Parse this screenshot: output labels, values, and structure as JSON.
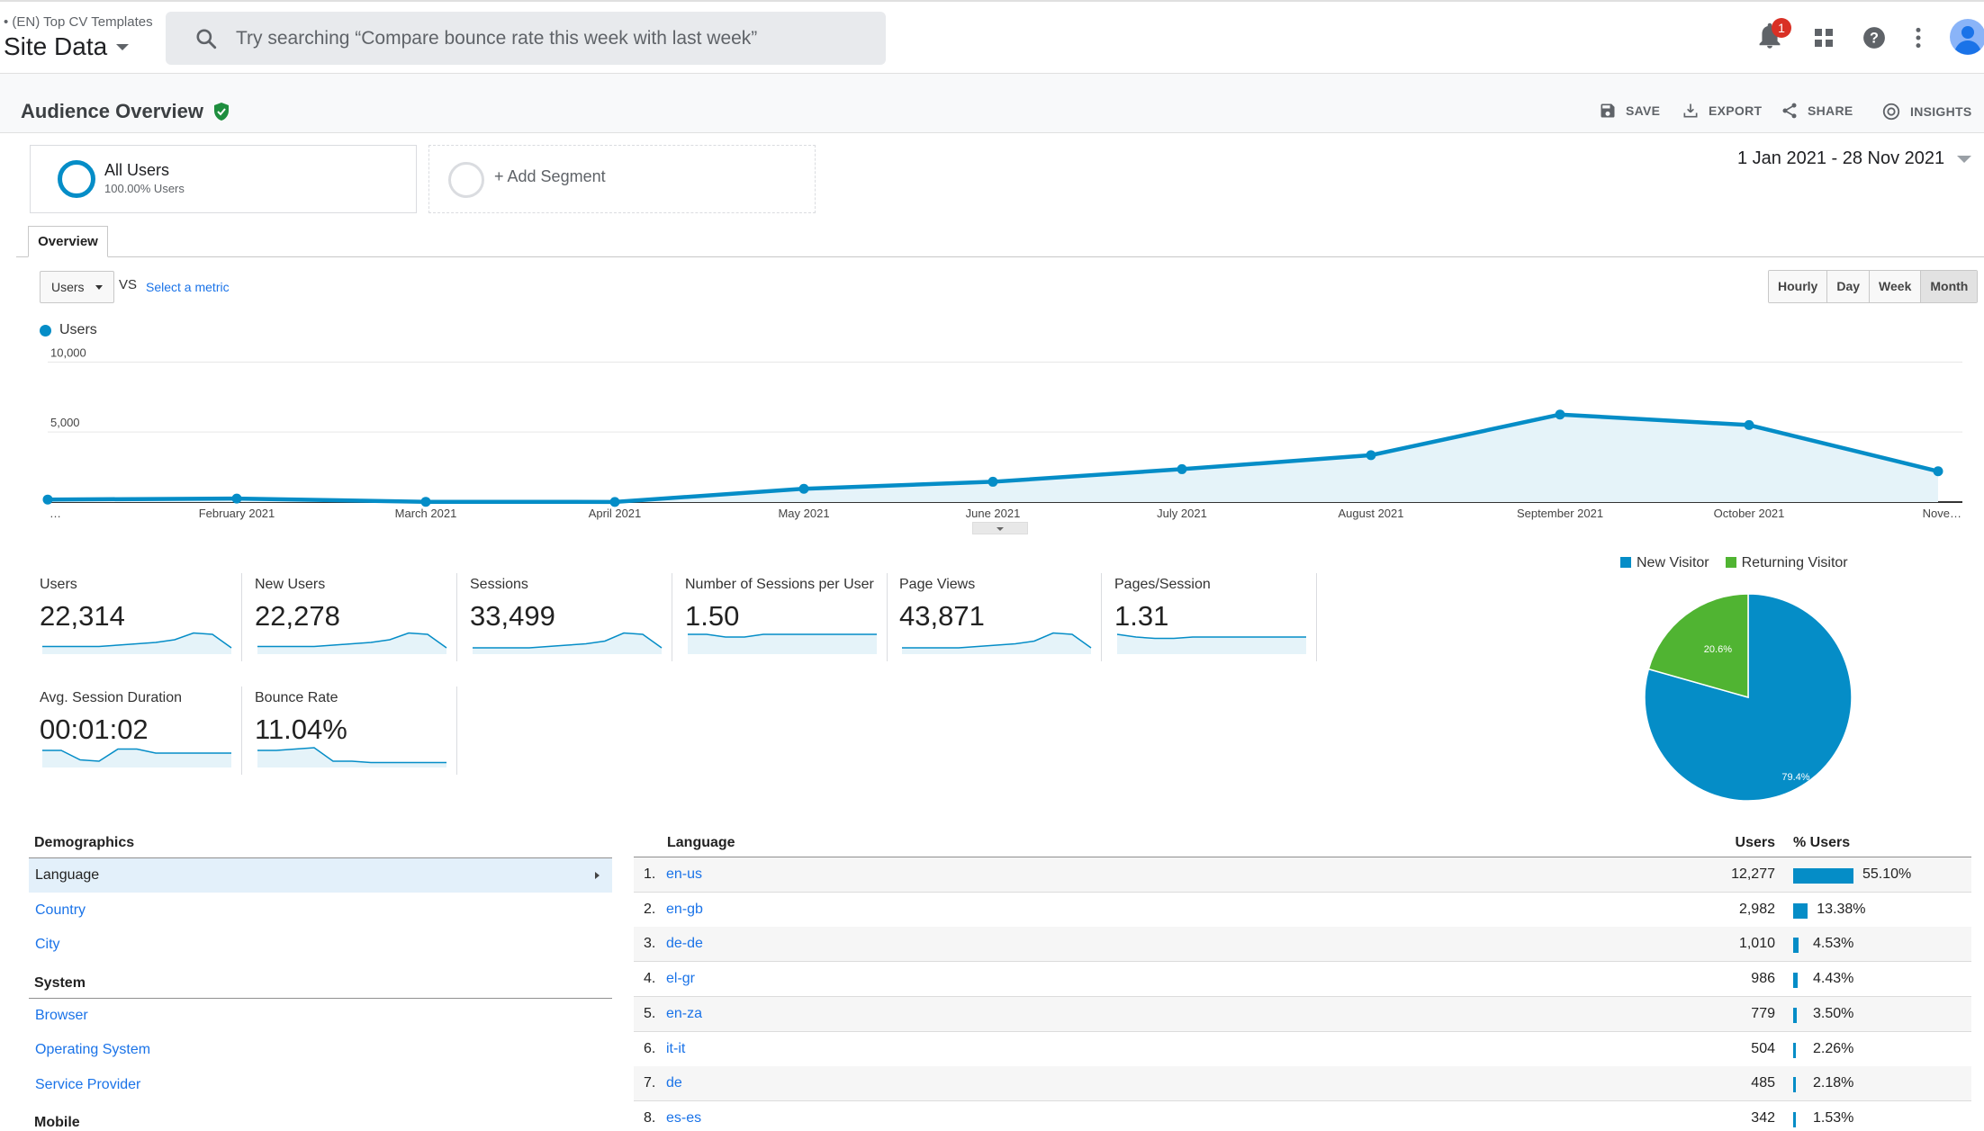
{
  "header": {
    "account_name": "(EN) Top CV Templates",
    "property_name": "Site Data",
    "search_placeholder": "Try searching “Compare bounce rate this week with last week”",
    "notification_count": "1"
  },
  "report": {
    "title": "Audience Overview",
    "actions": [
      "SAVE",
      "EXPORT",
      "SHARE",
      "INSIGHTS"
    ]
  },
  "segments": {
    "active_name": "All Users",
    "active_sub": "100.00% Users",
    "add_label": "+ Add Segment"
  },
  "date_range": "1 Jan 2021 - 28 Nov 2021",
  "tabs": [
    "Overview"
  ],
  "metric_selector": {
    "selected": "Users",
    "vs": "VS",
    "select_metric": "Select a metric",
    "granularity": [
      "Hourly",
      "Day",
      "Week",
      "Month"
    ],
    "granularity_selected": "Month"
  },
  "chart_data": {
    "type": "area",
    "series": [
      {
        "name": "Users",
        "values": [
          180,
          250,
          20,
          10,
          950,
          1450,
          2350,
          3350,
          6250,
          5500,
          2200
        ]
      }
    ],
    "categories": [
      "…",
      "February 2021",
      "March 2021",
      "April 2021",
      "May 2021",
      "June 2021",
      "July 2021",
      "August 2021",
      "September 2021",
      "October 2021",
      "Nove…"
    ],
    "y_ticks": [
      "10,000",
      "5,000"
    ],
    "y_tick_values": [
      10000,
      5000
    ],
    "ylim": [
      0,
      10000
    ],
    "color": "#058dc7"
  },
  "metrics": [
    {
      "label": "Users",
      "value": "22,314",
      "spark": [
        5,
        5,
        5,
        5,
        6,
        7,
        8,
        10,
        15,
        14,
        4
      ]
    },
    {
      "label": "New Users",
      "value": "22,278",
      "spark": [
        5,
        5,
        5,
        5,
        6,
        7,
        8,
        10,
        15,
        14,
        4
      ]
    },
    {
      "label": "Sessions",
      "value": "33,499",
      "spark": [
        4,
        4,
        4,
        4,
        5,
        6,
        7,
        9,
        15,
        14,
        4
      ]
    },
    {
      "label": "Number of Sessions per User",
      "value": "1.50",
      "spark": [
        14,
        14,
        12,
        12,
        14,
        14,
        14,
        14,
        14,
        14,
        14
      ]
    },
    {
      "label": "Page Views",
      "value": "43,871",
      "spark": [
        4,
        4,
        4,
        4,
        5,
        6,
        7,
        9,
        15,
        14,
        4
      ]
    },
    {
      "label": "Pages/Session",
      "value": "1.31",
      "spark": [
        14,
        12,
        11,
        11,
        12,
        12,
        12,
        12,
        12,
        12,
        12
      ]
    },
    {
      "label": "Avg. Session Duration",
      "value": "00:01:02",
      "spark": [
        12,
        12,
        5,
        4,
        13,
        13,
        10,
        10,
        10,
        10,
        10
      ]
    },
    {
      "label": "Bounce Rate",
      "value": "11.04%",
      "spark": [
        12,
        12,
        13,
        14,
        4,
        4,
        3,
        3,
        3,
        3,
        3
      ]
    }
  ],
  "pie": {
    "legend": [
      "New Visitor",
      "Returning Visitor"
    ],
    "colors": [
      "#058dc7",
      "#50b432"
    ],
    "values": [
      79.4,
      20.6
    ],
    "labels": [
      "79.4%",
      "20.6%"
    ]
  },
  "demographics": {
    "sections": [
      {
        "title": "Demographics",
        "items": [
          "Language",
          "Country",
          "City"
        ]
      },
      {
        "title": "System",
        "items": [
          "Browser",
          "Operating System",
          "Service Provider"
        ]
      },
      {
        "title": "Mobile",
        "items": []
      }
    ],
    "active_item": "Language"
  },
  "language_table": {
    "headers": {
      "name": "Language",
      "users": "Users",
      "pct": "% Users"
    },
    "rows": [
      {
        "rank": "1.",
        "name": "en-us",
        "users": "12,277",
        "pct": "55.10%",
        "pct_value": 55.1
      },
      {
        "rank": "2.",
        "name": "en-gb",
        "users": "2,982",
        "pct": "13.38%",
        "pct_value": 13.38
      },
      {
        "rank": "3.",
        "name": "de-de",
        "users": "1,010",
        "pct": "4.53%",
        "pct_value": 4.53
      },
      {
        "rank": "4.",
        "name": "el-gr",
        "users": "986",
        "pct": "4.43%",
        "pct_value": 4.43
      },
      {
        "rank": "5.",
        "name": "en-za",
        "users": "779",
        "pct": "3.50%",
        "pct_value": 3.5
      },
      {
        "rank": "6.",
        "name": "it-it",
        "users": "504",
        "pct": "2.26%",
        "pct_value": 2.26
      },
      {
        "rank": "7.",
        "name": "de",
        "users": "485",
        "pct": "2.18%",
        "pct_value": 2.18
      },
      {
        "rank": "8.",
        "name": "es-es",
        "users": "342",
        "pct": "1.53%",
        "pct_value": 1.53
      }
    ]
  }
}
